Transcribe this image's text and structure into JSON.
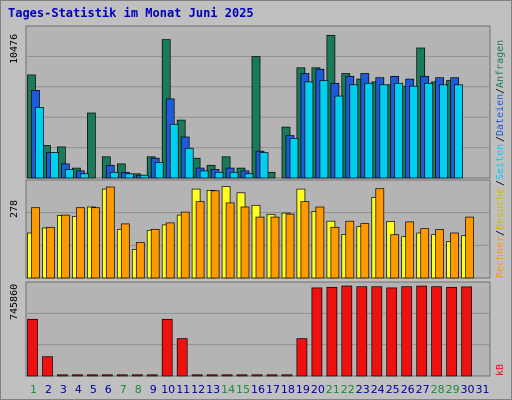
{
  "title": "Tages-Statistik im Monat Juni 2025",
  "colors": {
    "background": "#c0c0c0",
    "plot_bg": "#b4b4b4",
    "grid": "#909090",
    "anfragen": "#1a7a5a",
    "dateien": "#1e5bd8",
    "seiten": "#00d0f0",
    "besuche": "#ffff20",
    "rechner": "#ff9900",
    "kb": "#ee1111",
    "title": "#0000c0",
    "weekend_day": "#1a8a3a",
    "weekday": "#0000a0"
  },
  "chart_data": [
    {
      "type": "bar",
      "panel": "top",
      "max_label": "10476",
      "ylim": [
        0,
        10476
      ],
      "grid": true,
      "legend_placement": "right",
      "categories": [
        "1",
        "2",
        "3",
        "4",
        "5",
        "6",
        "7",
        "8",
        "9",
        "10",
        "11",
        "12",
        "13",
        "14",
        "15",
        "16",
        "17",
        "18",
        "19",
        "20",
        "21",
        "22",
        "23",
        "24",
        "25",
        "26",
        "27",
        "28",
        "29",
        "30",
        "31"
      ],
      "series": [
        {
          "name": "Anfragen",
          "values": [
            7300,
            2300,
            2200,
            700,
            4600,
            1500,
            1000,
            300,
            1500,
            9800,
            4100,
            1400,
            900,
            1500,
            700,
            8600,
            400,
            3600,
            7800,
            7800,
            10100,
            7400,
            7000,
            6800,
            6600,
            6500,
            9200,
            6800,
            6900,
            0,
            0
          ]
        },
        {
          "name": "Dateien",
          "values": [
            6200,
            1800,
            1000,
            500,
            0,
            900,
            400,
            200,
            1400,
            5600,
            2900,
            700,
            600,
            700,
            500,
            1900,
            0,
            3000,
            7400,
            7700,
            6700,
            7200,
            7400,
            7100,
            7200,
            7000,
            7200,
            7100,
            7100,
            0,
            0
          ]
        },
        {
          "name": "Seiten",
          "values": [
            5000,
            1800,
            600,
            300,
            0,
            400,
            300,
            200,
            1100,
            3800,
            2100,
            500,
            400,
            400,
            300,
            1800,
            0,
            2800,
            6800,
            6900,
            5800,
            6600,
            6700,
            6600,
            6700,
            6500,
            6700,
            6600,
            6600,
            0,
            0
          ]
        }
      ]
    },
    {
      "type": "bar",
      "panel": "middle",
      "max_label": "278",
      "ylim": [
        0,
        278
      ],
      "grid": true,
      "legend_placement": "right",
      "categories": [
        "1",
        "2",
        "3",
        "4",
        "5",
        "6",
        "7",
        "8",
        "9",
        "10",
        "11",
        "12",
        "13",
        "14",
        "15",
        "16",
        "17",
        "18",
        "19",
        "20",
        "21",
        "22",
        "23",
        "24",
        "25",
        "26",
        "27",
        "28",
        "29",
        "30",
        "31"
      ],
      "series": [
        {
          "name": "Besuche",
          "values": [
            133,
            148,
            185,
            182,
            210,
            263,
            143,
            84,
            141,
            157,
            186,
            263,
            259,
            270,
            252,
            215,
            188,
            192,
            263,
            197,
            168,
            129,
            152,
            238,
            167,
            122,
            133,
            128,
            108,
            125,
            0
          ]
        },
        {
          "name": "Rechner",
          "values": [
            208,
            150,
            186,
            208,
            208,
            269,
            160,
            105,
            144,
            163,
            195,
            226,
            258,
            222,
            210,
            180,
            180,
            189,
            226,
            210,
            150,
            168,
            161,
            264,
            128,
            166,
            146,
            143,
            133,
            180,
            0
          ]
        }
      ]
    },
    {
      "type": "bar",
      "panel": "bottom",
      "max_label": "745860",
      "ylim": [
        0,
        745860
      ],
      "grid": true,
      "legend_placement": "right",
      "categories": [
        "1",
        "2",
        "3",
        "4",
        "5",
        "6",
        "7",
        "8",
        "9",
        "10",
        "11",
        "12",
        "13",
        "14",
        "15",
        "16",
        "17",
        "18",
        "19",
        "20",
        "21",
        "22",
        "23",
        "24",
        "25",
        "26",
        "27",
        "28",
        "29",
        "30",
        "31"
      ],
      "series": [
        {
          "name": "kB",
          "values": [
            470000,
            160000,
            10000,
            10000,
            10000,
            10000,
            10000,
            10000,
            10000,
            470000,
            310000,
            10000,
            10000,
            10000,
            10000,
            10000,
            10000,
            10000,
            310000,
            730000,
            735000,
            745860,
            740000,
            740000,
            730000,
            740000,
            745000,
            740000,
            735000,
            738000,
            0
          ]
        }
      ]
    }
  ],
  "legend_text": [
    "Anfragen",
    "/",
    "Dateien",
    "/",
    "Seiten",
    "/",
    "Besuche",
    "/",
    "Rechner",
    "kB"
  ],
  "x_labels": [
    "1",
    "2",
    "3",
    "4",
    "5",
    "6",
    "7",
    "8",
    "9",
    "10",
    "11",
    "12",
    "13",
    "14",
    "15",
    "16",
    "17",
    "18",
    "19",
    "20",
    "21",
    "22",
    "23",
    "24",
    "25",
    "26",
    "27",
    "28",
    "29",
    "30",
    "31"
  ],
  "weekend_days": [
    1,
    7,
    8,
    14,
    15,
    21,
    22,
    28,
    29
  ]
}
